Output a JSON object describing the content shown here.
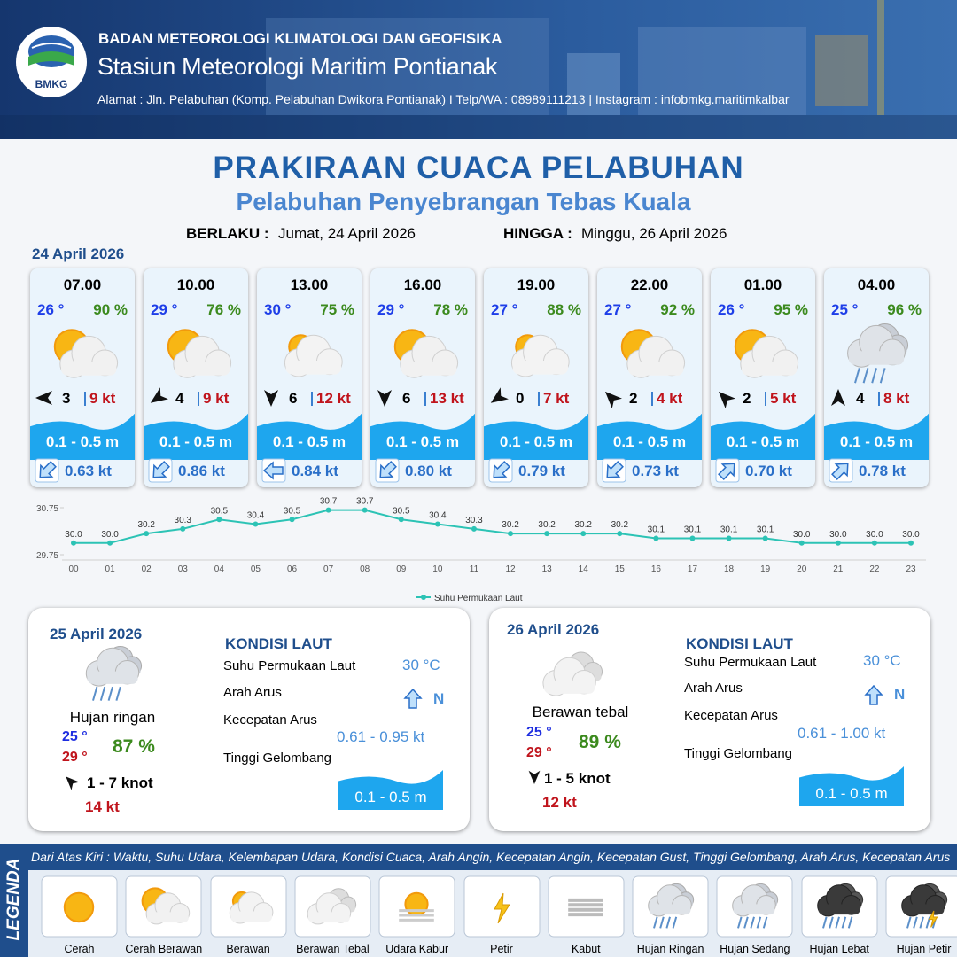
{
  "header": {
    "logo": "BMKG",
    "agency": "BADAN METEOROLOGI KLIMATOLOGI DAN GEOFISIKA",
    "station": "Stasiun Meteorologi Maritim Pontianak",
    "address": "Alamat : Jln. Pelabuhan (Komp. Pelabuhan Dwikora Pontianak) I Telp/WA : 08989111213 | Instagram : infobmkg.maritimkalbar"
  },
  "title": "PRAKIRAAN CUACA PELABUHAN",
  "subtitle": "Pelabuhan Penyebrangan Tebas Kuala",
  "validity": {
    "from_label": "BERLAKU :",
    "from": "Jumat, 24 April 2026",
    "to_label": "HINGGA :",
    "to": "Minggu, 26 April 2026"
  },
  "today": {
    "date": "24 April 2026",
    "slots": [
      {
        "time": "07.00",
        "temp": "26 °",
        "humidity": "90 %",
        "wind": "3",
        "gust": "9 kt",
        "wave": "0.1 - 0.5 m",
        "current": "0.63 kt"
      },
      {
        "time": "10.00",
        "temp": "29 °",
        "humidity": "76 %",
        "wind": "4",
        "gust": "9 kt",
        "wave": "0.1 - 0.5 m",
        "current": "0.86 kt"
      },
      {
        "time": "13.00",
        "temp": "30 °",
        "humidity": "75 %",
        "wind": "6",
        "gust": "12 kt",
        "wave": "0.1 - 0.5 m",
        "current": "0.84 kt"
      },
      {
        "time": "16.00",
        "temp": "29 °",
        "humidity": "78 %",
        "wind": "6",
        "gust": "13 kt",
        "wave": "0.1 - 0.5 m",
        "current": "0.80 kt"
      },
      {
        "time": "19.00",
        "temp": "27 °",
        "humidity": "88 %",
        "wind": "0",
        "gust": "7 kt",
        "wave": "0.1 - 0.5 m",
        "current": "0.79 kt"
      },
      {
        "time": "22.00",
        "temp": "27 °",
        "humidity": "92 %",
        "wind": "2",
        "gust": "4 kt",
        "wave": "0.1 - 0.5 m",
        "current": "0.73 kt"
      },
      {
        "time": "01.00",
        "temp": "26 °",
        "humidity": "95 %",
        "wind": "2",
        "gust": "5 kt",
        "wave": "0.1 - 0.5 m",
        "current": "0.70 kt"
      },
      {
        "time": "04.00",
        "temp": "25 °",
        "humidity": "96 %",
        "wind": "4",
        "gust": "8 kt",
        "wave": "0.1 - 0.5 m",
        "current": "0.78 kt"
      }
    ]
  },
  "chart_data": {
    "type": "line",
    "categories": [
      "00",
      "01",
      "02",
      "03",
      "04",
      "05",
      "06",
      "07",
      "08",
      "09",
      "10",
      "11",
      "12",
      "13",
      "14",
      "15",
      "16",
      "17",
      "18",
      "19",
      "20",
      "21",
      "22",
      "23"
    ],
    "series": [
      {
        "name": "Suhu Permukaan Laut",
        "color": "#2cc3b5",
        "values": [
          30.0,
          30.0,
          30.2,
          30.3,
          30.5,
          30.4,
          30.5,
          30.7,
          30.7,
          30.5,
          30.4,
          30.3,
          30.2,
          30.2,
          30.2,
          30.2,
          30.1,
          30.1,
          30.1,
          30.1,
          30.0,
          30.0,
          30.0,
          30.0
        ],
        "value_labels": [
          "30.0",
          "30.0",
          "30.2",
          "30.3",
          "30.5",
          "30.4",
          "30.5",
          "30.7",
          "30.7",
          "30.5",
          "30.4",
          "30.3",
          "30.2",
          "30.2",
          "30.2",
          "30.2",
          "30.1",
          "30.1",
          "30.1",
          "30.1",
          "30.0",
          "30.0",
          "30.0",
          "30.0"
        ]
      }
    ],
    "ylim": [
      29.75,
      30.75
    ],
    "yticks": [
      29.75,
      30.75
    ],
    "legend": "bottom"
  },
  "days": [
    {
      "date": "25 April 2026",
      "condition": "Hujan ringan",
      "temp_min": "25 °",
      "temp_max": "29 °",
      "humidity": "87 %",
      "wind": "1 - 7 knot",
      "gust": "14 kt",
      "sea_title": "KONDISI LAUT",
      "sst_label": "Suhu Permukaan Laut",
      "sst": "30 °C",
      "current_dir_label": "Arah Arus",
      "current_dir": "N",
      "current_speed_label": "Kecepatan Arus",
      "current_speed": "0.61 - 0.95 kt",
      "wave_label": "Tinggi Gelombang",
      "wave": "0.1 - 0.5 m"
    },
    {
      "date": "26 April 2026",
      "condition": "Berawan tebal",
      "temp_min": "25 °",
      "temp_max": "29 °",
      "humidity": "89 %",
      "wind": "1 - 5 knot",
      "gust": "12 kt",
      "sea_title": "KONDISI LAUT",
      "sst_label": "Suhu Permukaan Laut",
      "sst": "30 °C",
      "current_dir_label": "Arah Arus",
      "current_dir": "N",
      "current_speed_label": "Kecepatan Arus",
      "current_speed": "0.61 - 1.00 kt",
      "wave_label": "Tinggi Gelombang",
      "wave": "0.1 - 0.5 m"
    }
  ],
  "legend": {
    "title": "LEGENDA",
    "description": "Dari Atas Kiri : Waktu, Suhu Udara, Kelembapan Udara, Kondisi Cuaca, Arah Angin, Kecepatan Angin, Kecepatan Gust, Tinggi Gelombang, Arah Arus, Kecepatan Arus",
    "items": [
      "Cerah",
      "Cerah Berawan",
      "Berawan",
      "Berawan Tebal",
      "Udara Kabur",
      "Petir",
      "Kabut",
      "Hujan Ringan",
      "Hujan Sedang",
      "Hujan Lebat",
      "Hujan Petir"
    ]
  }
}
